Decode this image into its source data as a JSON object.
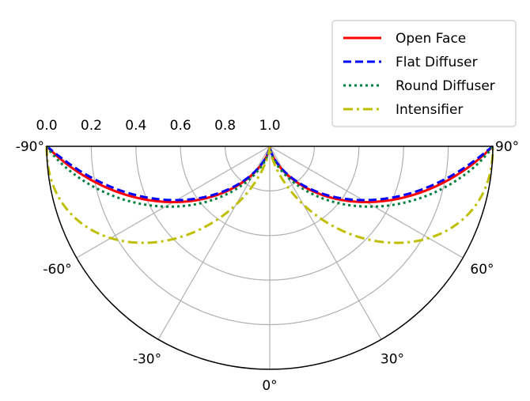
{
  "chart_data": {
    "type": "line",
    "projection": "polar-half",
    "angle_unit": "deg",
    "theta_range": [
      -90,
      90
    ],
    "r_range": [
      0,
      1
    ],
    "r_direction": "inverted",
    "r_ticks": [
      "1.0",
      "0.8",
      "0.6",
      "0.4",
      "0.2",
      "0.0"
    ],
    "r_tick_values": [
      1.0,
      0.8,
      0.6,
      0.4,
      0.2,
      0.0
    ],
    "theta_ticks": [
      {
        "angle": -90,
        "label": "-90°"
      },
      {
        "angle": -60,
        "label": "-60°"
      },
      {
        "angle": -30,
        "label": "-30°"
      },
      {
        "angle": 0,
        "label": "0°"
      },
      {
        "angle": 30,
        "label": "30°"
      },
      {
        "angle": 60,
        "label": "60°"
      },
      {
        "angle": 90,
        "label": "90°"
      }
    ],
    "grid": true,
    "legend_position": "top-right",
    "series": [
      {
        "name": "Open Face",
        "color": "#ff0000",
        "dash": "solid",
        "model": "cos",
        "power": 1.0,
        "scale": 1.0
      },
      {
        "name": "Flat Diffuser",
        "color": "#0000ff",
        "dash": "dashed",
        "model": "cos",
        "power": 0.95,
        "scale": 1.0
      },
      {
        "name": "Round Diffuser",
        "color": "#007f3f",
        "dash": "dotted",
        "model": "cos",
        "power": 1.1,
        "scale": 0.985
      },
      {
        "name": "Intensifier",
        "color": "#bfbf00",
        "dash": "dashdot",
        "model": "cos",
        "power": 2.5,
        "scale": 1.0
      }
    ]
  }
}
